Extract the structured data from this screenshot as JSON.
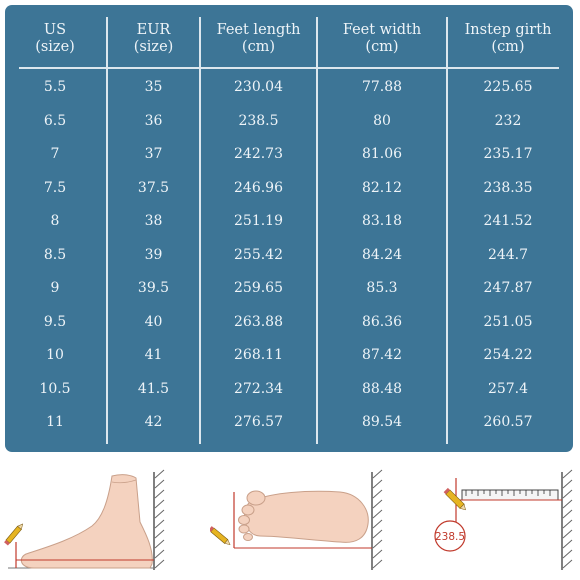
{
  "size_chart": {
    "headers": [
      {
        "line1": "US",
        "line2": "(size)"
      },
      {
        "line1": "EUR",
        "line2": "(size)"
      },
      {
        "line1": "Feet length",
        "line2": "(cm)"
      },
      {
        "line1": "Feet width",
        "line2": "(cm)"
      },
      {
        "line1": "Instep girth",
        "line2": "(cm)"
      }
    ],
    "rows": [
      [
        "5.5",
        "35",
        "230.04",
        "77.88",
        "225.65"
      ],
      [
        "6.5",
        "36",
        "238.5",
        "80",
        "232"
      ],
      [
        "7",
        "37",
        "242.73",
        "81.06",
        "235.17"
      ],
      [
        "7.5",
        "37.5",
        "246.96",
        "82.12",
        "238.35"
      ],
      [
        "8",
        "38",
        "251.19",
        "83.18",
        "241.52"
      ],
      [
        "8.5",
        "39",
        "255.42",
        "84.24",
        "244.7"
      ],
      [
        "9",
        "39.5",
        "259.65",
        "85.3",
        "247.87"
      ],
      [
        "9.5",
        "40",
        "263.88",
        "86.36",
        "251.05"
      ],
      [
        "10",
        "41",
        "268.11",
        "87.42",
        "254.22"
      ],
      [
        "10.5",
        "41.5",
        "272.34",
        "88.48",
        "257.4"
      ],
      [
        "11",
        "42",
        "276.57",
        "89.54",
        "260.57"
      ]
    ]
  },
  "illustrations": {
    "items": [
      {
        "icon": "foot-side-view-icon"
      },
      {
        "icon": "foot-top-view-icon"
      },
      {
        "icon": "measuring-ruler-icon",
        "badge": "238.5"
      }
    ]
  },
  "colors": {
    "card_background": "#3d7596",
    "text": "#eef4f8",
    "lines": "#dce7ee",
    "measure_red": "#c0392b"
  }
}
